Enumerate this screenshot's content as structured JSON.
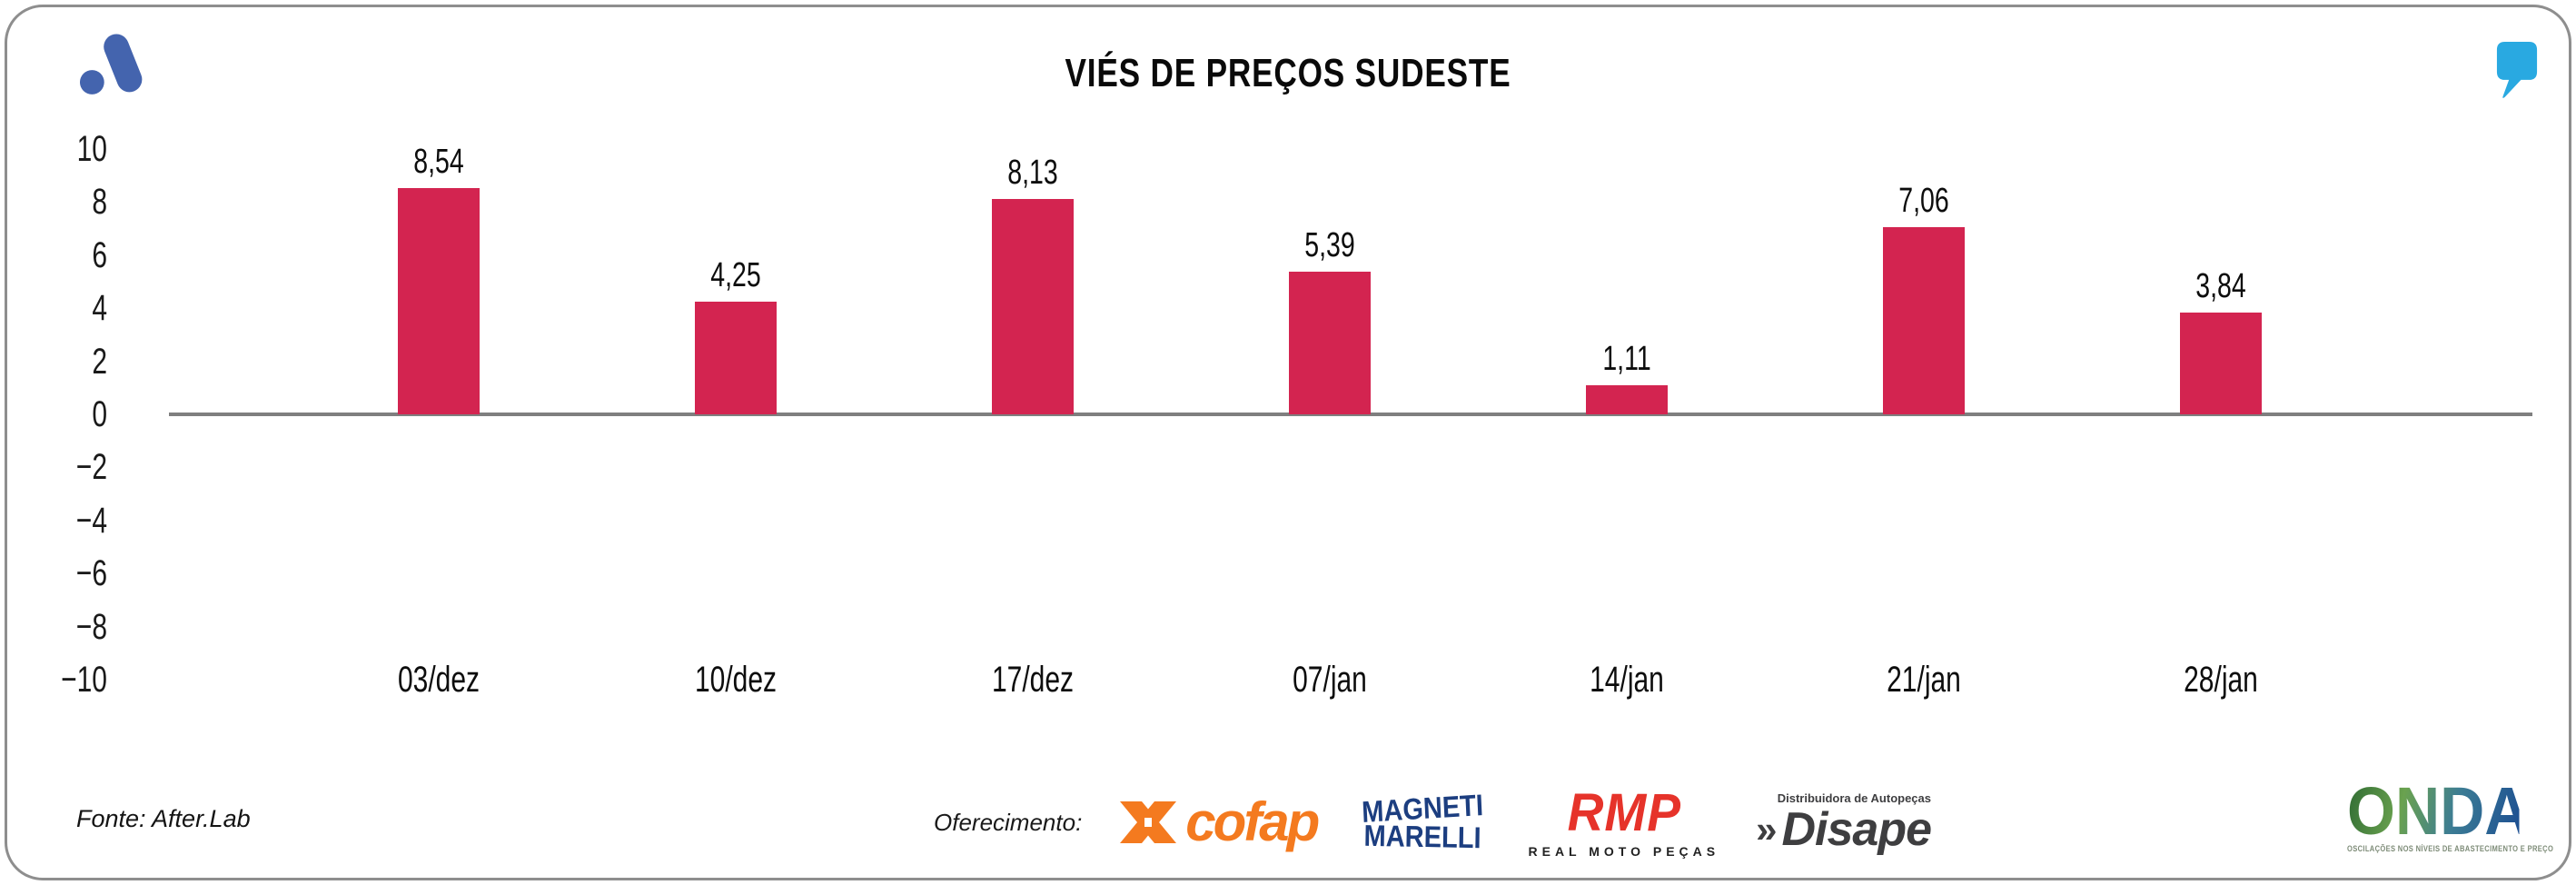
{
  "title": "VIÉS DE PREÇOS SUDESTE",
  "chart_data": {
    "type": "bar",
    "categories": [
      "03/dez",
      "10/dez",
      "17/dez",
      "07/jan",
      "14/jan",
      "21/jan",
      "28/jan"
    ],
    "values": [
      8.54,
      4.25,
      8.13,
      5.39,
      1.11,
      7.06,
      3.84
    ],
    "value_labels": [
      "8,54",
      "4,25",
      "8,13",
      "5,39",
      "1,11",
      "7,06",
      "3,84"
    ],
    "title": "VIÉS DE PREÇOS SUDESTE",
    "xlabel": "",
    "ylabel": "",
    "ylim": [
      -10,
      10
    ],
    "yticks": [
      10,
      8,
      6,
      4,
      2,
      0,
      -2,
      -4,
      -6,
      -8,
      -10
    ],
    "ytick_labels": [
      "10",
      "8",
      "6",
      "4",
      "2",
      "0",
      "−2",
      "−4",
      "−6",
      "−8",
      "−10"
    ],
    "grid": false,
    "legend": false,
    "bar_color": "#d32450",
    "axis_color": "#7f7f7f"
  },
  "colors": {
    "brand_blue": "#4464ae",
    "quote_blue": "#29a9e1",
    "cofap_orange": "#f47a1f",
    "magneti_blue": "#1c3e80",
    "rmp_red": "#e6332a",
    "disape_grey": "#3e3e40",
    "frame_grey": "#8e8e8e"
  },
  "footer": {
    "source": "Fonte: After.Lab",
    "sponsors": {
      "label": "Oferecimento:",
      "cofap": {
        "text": "cofap"
      },
      "magneti": {
        "line1": "MAGNETI",
        "line2": "MARELLI"
      },
      "rmp": {
        "text": "RMP",
        "subtext": "REAL MOTO PEÇAS"
      },
      "disape": {
        "chevron": "»",
        "text": "Disape",
        "subtext": "Distribuidora de Autopeças"
      }
    },
    "onda": {
      "name": "ONDA",
      "tagline": "OSCILAÇÕES NOS NÍVEIS DE ABASTECIMENTO E PREÇO"
    }
  }
}
